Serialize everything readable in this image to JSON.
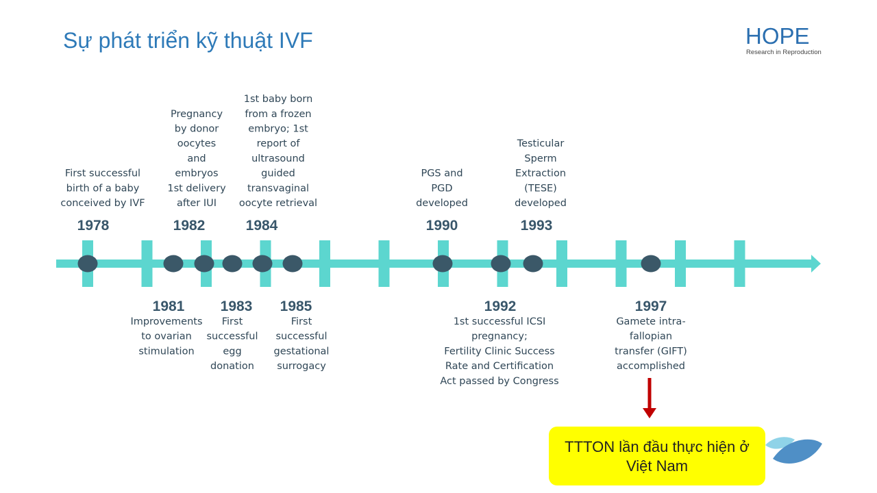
{
  "title": "Sự phát triển kỹ thuật IVF",
  "logo": {
    "name": "HOPE",
    "tagline": "Research in Reproduction"
  },
  "events": [
    {
      "year": "1978",
      "lines": [
        "First successful",
        "birth of a baby",
        "conceived by IVF"
      ]
    },
    {
      "year": "1981",
      "lines": [
        "Improvements",
        "to ovarian",
        "stimulation"
      ]
    },
    {
      "year": "1982",
      "lines": [
        "Pregnancy",
        "by donor",
        "oocytes",
        "and",
        "embryos",
        "1st delivery",
        "after IUI"
      ]
    },
    {
      "year": "1983",
      "lines": [
        "First",
        "successful",
        "egg",
        "donation"
      ]
    },
    {
      "year": "1984",
      "lines": [
        "1st baby born",
        "from a frozen",
        "embryo; 1st",
        "report of",
        "ultrasound",
        "guided",
        "transvaginal",
        "oocyte retrieval"
      ]
    },
    {
      "year": "1985",
      "lines": [
        "First",
        "successful",
        "gestational",
        "surrogacy"
      ]
    },
    {
      "year": "1990",
      "lines": [
        "PGS and",
        "PGD",
        "developed"
      ]
    },
    {
      "year": "1992",
      "lines": [
        "1st successful ICSI",
        "pregnancy;",
        "Fertility Clinic Success",
        "Rate and Certification",
        "Act passed by Congress"
      ]
    },
    {
      "year": "1993",
      "lines": [
        "Testicular",
        "Sperm",
        "Extraction",
        "(TESE)",
        "developed"
      ]
    },
    {
      "year": "1997",
      "lines": [
        "Gamete intra-",
        "fallopian",
        "transfer (GIFT)",
        "accomplished"
      ]
    }
  ],
  "callout": {
    "lines": [
      "TTTON lần đầu thực hiện ở",
      "Việt Nam"
    ]
  }
}
